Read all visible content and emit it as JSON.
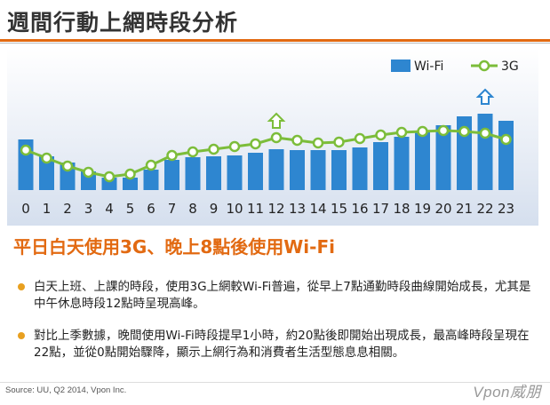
{
  "page": {
    "title": "週間行動上網時段分析",
    "subtitle": "平日白天使用3G、晚上8點後使用Wi-Fi",
    "bullets": [
      "白天上班、上課的時段，使用3G上網較Wi-Fi普遍，從早上7點通勤時段曲線開始成長，尤其是中午休息時段12點時呈現高峰。",
      "對比上季數據，晚間使用Wi-Fi時段提早1小時，約20點後即開始出現成長，最高峰時段呈現在22點，並從0點開始驟降，顯示上網行為和消費者生活型態息息相關。"
    ],
    "source": "Source: UU, Q2 2014,  Vpon Inc.",
    "logo": "Vpon威朋"
  },
  "chart_data": {
    "type": "bar",
    "categories": [
      "0",
      "1",
      "2",
      "3",
      "4",
      "5",
      "6",
      "7",
      "8",
      "9",
      "10",
      "11",
      "12",
      "13",
      "14",
      "15",
      "16",
      "17",
      "18",
      "19",
      "20",
      "21",
      "22",
      "23"
    ],
    "series": [
      {
        "name": "Wi-Fi",
        "type": "bar",
        "color": "#2e86d0",
        "values": [
          57,
          38,
          31,
          21,
          14,
          14,
          23,
          34,
          37,
          38,
          39,
          42,
          46,
          45,
          45,
          45,
          48,
          54,
          60,
          67,
          73,
          83,
          86,
          78
        ]
      },
      {
        "name": "3G",
        "type": "line",
        "color": "#7cbd3a",
        "values": [
          45,
          36,
          27,
          20,
          15,
          18,
          28,
          39,
          43,
          46,
          49,
          52,
          59,
          56,
          53,
          54,
          58,
          62,
          65,
          66,
          67,
          66,
          64,
          57
        ]
      }
    ],
    "ylim": [
      0,
      100
    ],
    "highlights": [
      {
        "series": "3G",
        "x": "12",
        "marker": "up-arrow"
      },
      {
        "series": "Wi-Fi",
        "x": "22",
        "marker": "up-arrow"
      }
    ],
    "legend_position": "top-right",
    "grid": false
  }
}
